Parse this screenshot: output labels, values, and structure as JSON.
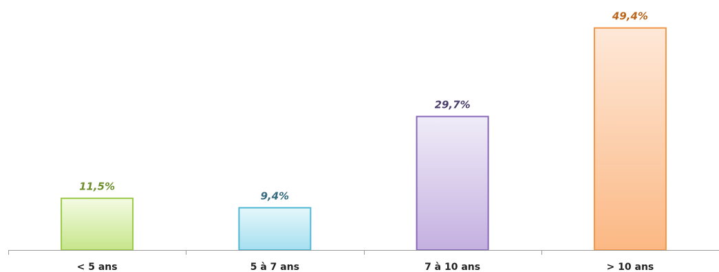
{
  "chart_data": {
    "type": "bar",
    "title": "",
    "xlabel": "",
    "ylabel": "",
    "categories": [
      "< 5 ans",
      "5 à 7 ans",
      "7 à 10 ans",
      "> 10 ans"
    ],
    "values": [
      11.5,
      9.4,
      29.7,
      49.4
    ],
    "value_labels": [
      "11,5%",
      "9,4%",
      "29,7%",
      "49,4%"
    ],
    "ylim": [
      0,
      55
    ],
    "grid": false,
    "legend": "none",
    "bar_colors": [
      {
        "top": "#f4fbe4",
        "bottom": "#c6e58a",
        "stroke": "#9bc94a",
        "label": "#6e8f2c"
      },
      {
        "top": "#e4f7fb",
        "bottom": "#a6dff0",
        "stroke": "#4fb6d2",
        "label": "#356b80"
      },
      {
        "top": "#f0ecf8",
        "bottom": "#c4b0e0",
        "stroke": "#8667b8",
        "label": "#4a3e6e"
      },
      {
        "top": "#fee8d8",
        "bottom": "#fbb884",
        "stroke": "#f39646",
        "label": "#b9651c"
      }
    ]
  }
}
